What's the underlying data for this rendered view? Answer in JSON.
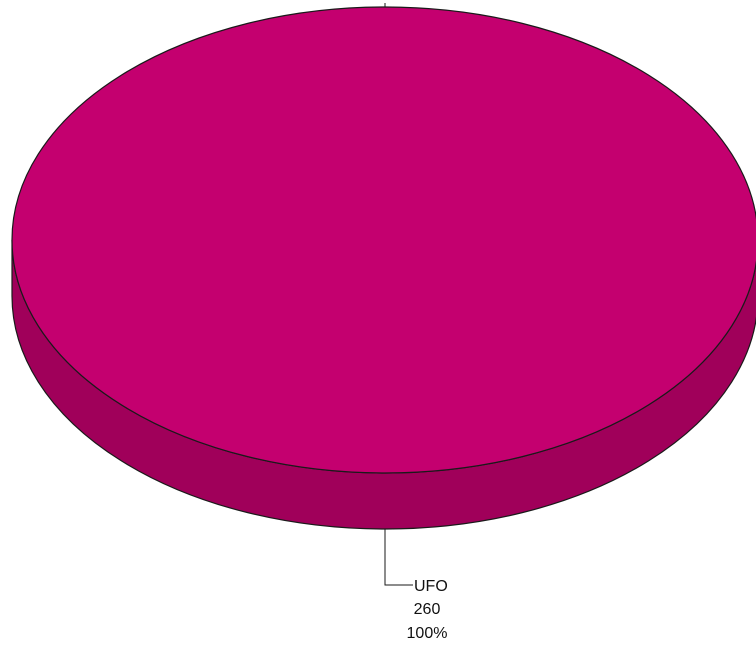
{
  "chart_data": {
    "type": "pie",
    "style": "3d",
    "slices": [
      {
        "label": "UFO",
        "value": 260,
        "percent": "100%",
        "value_text": "260",
        "color": "#C4006F",
        "side_color": "#A0005A"
      }
    ],
    "title": "",
    "legend": "none"
  }
}
